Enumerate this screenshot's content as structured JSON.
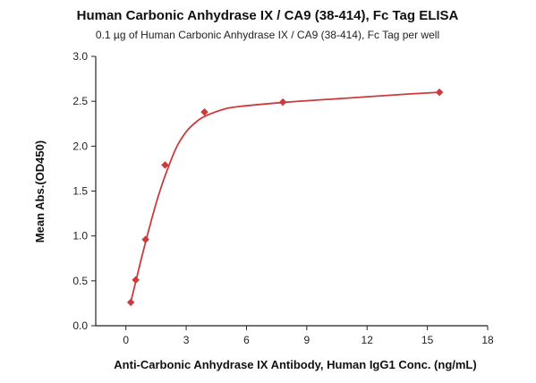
{
  "chart_data": {
    "type": "scatter",
    "title": "Human Carbonic Anhydrase IX / CA9 (38-414), Fc Tag ELISA",
    "subtitle": "0.1 µg of Human Carbonic Anhydrase IX / CA9 (38-414), Fc Tag per well",
    "xlabel": "Anti-Carbonic Anhydrase IX Antibody, Human IgG1 Conc. (ng/mL)",
    "ylabel": "Mean Abs.(OD450)",
    "xlim": [
      -1.5,
      18
    ],
    "ylim": [
      0,
      3.0
    ],
    "x_ticks": [
      0,
      3,
      6,
      9,
      12,
      15,
      18
    ],
    "y_ticks": [
      0.0,
      0.5,
      1.0,
      1.5,
      2.0,
      2.5,
      3.0
    ],
    "x_tick_labels": [
      "0",
      "3",
      "6",
      "9",
      "12",
      "15",
      "18"
    ],
    "y_tick_labels": [
      "0.0",
      "0.5",
      "1.0",
      "1.5",
      "2.0",
      "2.5",
      "3.0"
    ],
    "grid": false,
    "marker": "diamond",
    "color": "#cc3b3b",
    "series": [
      {
        "points": [
          {
            "x": 0.244,
            "y": 0.26
          },
          {
            "x": 0.488,
            "y": 0.51
          },
          {
            "x": 0.977,
            "y": 0.96
          },
          {
            "x": 1.95,
            "y": 1.79
          },
          {
            "x": 3.91,
            "y": 2.38
          },
          {
            "x": 7.81,
            "y": 2.49
          },
          {
            "x": 15.6,
            "y": 2.6
          }
        ],
        "fit_curve": [
          {
            "x": 0.25,
            "y": 0.27
          },
          {
            "x": 0.5,
            "y": 0.5
          },
          {
            "x": 0.75,
            "y": 0.73
          },
          {
            "x": 1.0,
            "y": 0.95
          },
          {
            "x": 1.25,
            "y": 1.16
          },
          {
            "x": 1.5,
            "y": 1.36
          },
          {
            "x": 1.75,
            "y": 1.54
          },
          {
            "x": 2.0,
            "y": 1.7
          },
          {
            "x": 2.5,
            "y": 1.98
          },
          {
            "x": 3.0,
            "y": 2.16
          },
          {
            "x": 3.5,
            "y": 2.27
          },
          {
            "x": 4.0,
            "y": 2.34
          },
          {
            "x": 5.0,
            "y": 2.42
          },
          {
            "x": 6.0,
            "y": 2.45
          },
          {
            "x": 8.0,
            "y": 2.49
          },
          {
            "x": 10.0,
            "y": 2.52
          },
          {
            "x": 12.0,
            "y": 2.55
          },
          {
            "x": 14.0,
            "y": 2.58
          },
          {
            "x": 15.6,
            "y": 2.6
          }
        ]
      }
    ]
  }
}
